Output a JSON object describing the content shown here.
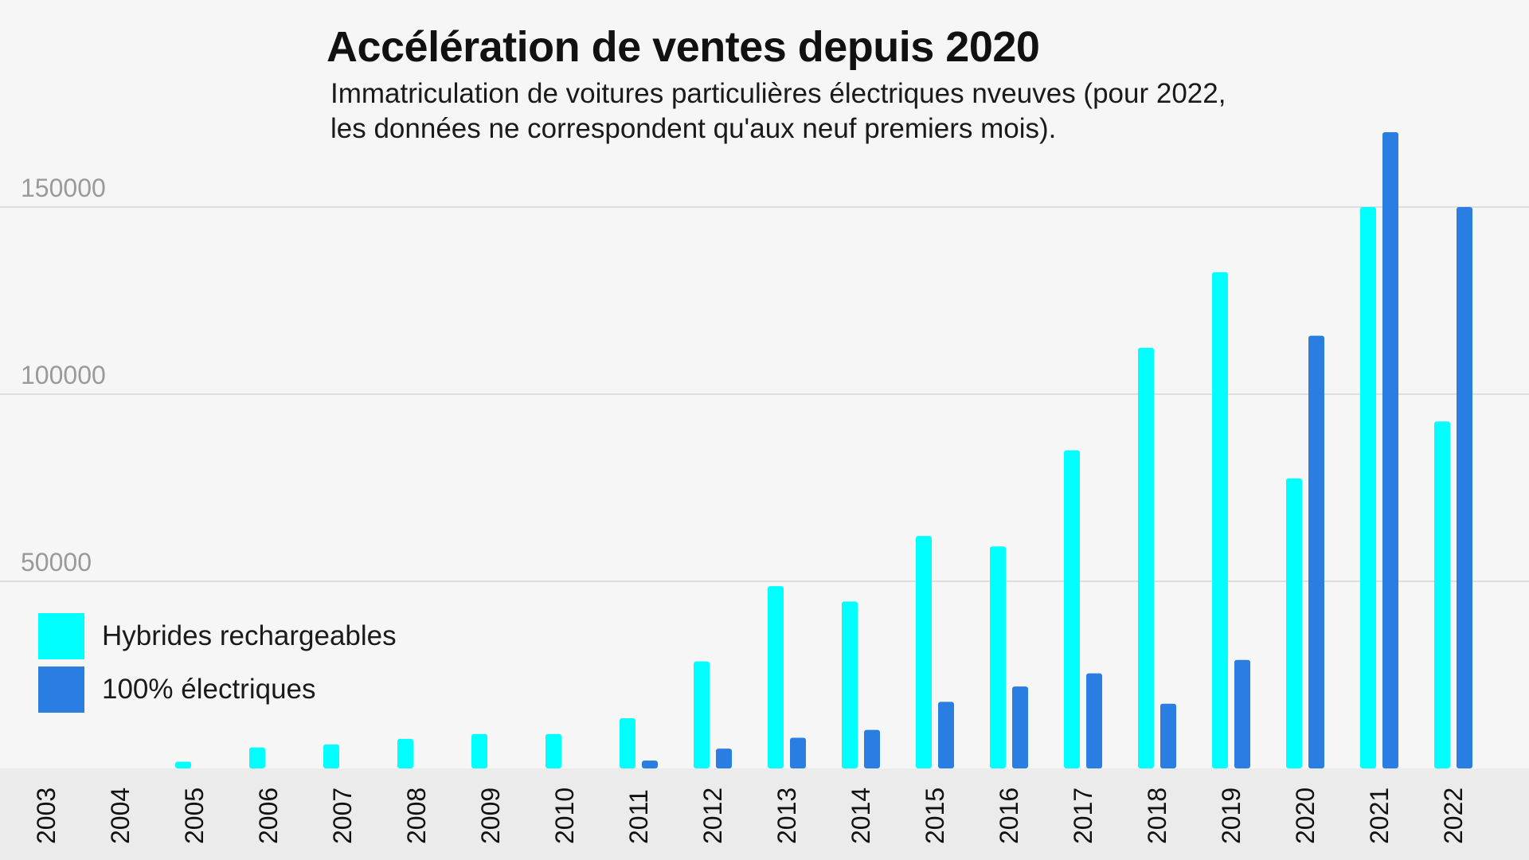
{
  "colors": {
    "hybrid": "#00ffff",
    "electric": "#2a7de1",
    "background": "#f6f6f6",
    "axis_band": "#ebebeb",
    "grid": "#d6d6d6"
  },
  "chart_data": {
    "type": "bar",
    "title": "Accélération de ventes depuis 2020",
    "subtitle": "Immatriculation de voitures particulières électriques nveuves (pour 2022, les données ne correspondent qu'aux neuf premiers mois).",
    "xlabel": "",
    "ylabel": "",
    "ylim": [
      0,
      170000
    ],
    "yticks": [
      50000,
      100000,
      150000
    ],
    "ytick_labels": [
      "50000",
      "100000",
      "150000"
    ],
    "grid": true,
    "legend_position": "bottom-left",
    "categories": [
      "2003",
      "2004",
      "2005",
      "2006",
      "2007",
      "2008",
      "2009",
      "2010",
      "2011",
      "2012",
      "2013",
      "2014",
      "2015",
      "2016",
      "2017",
      "2018",
      "2019",
      "2020",
      "2021",
      "2022"
    ],
    "series": [
      {
        "name": "Hybrides rechargeables",
        "color": "#00ffff",
        "values": [
          0,
          0,
          1800,
          5600,
          6400,
          7900,
          9200,
          9200,
          13400,
          28600,
          48700,
          44600,
          62100,
          59300,
          85000,
          112400,
          132600,
          77500,
          150000,
          92700
        ]
      },
      {
        "name": "100% électriques",
        "color": "#2a7de1",
        "values": [
          0,
          0,
          0,
          0,
          0,
          0,
          0,
          0,
          2100,
          5300,
          8200,
          10300,
          17800,
          21900,
          25400,
          17300,
          29000,
          115600,
          170000,
          150000
        ]
      }
    ]
  }
}
